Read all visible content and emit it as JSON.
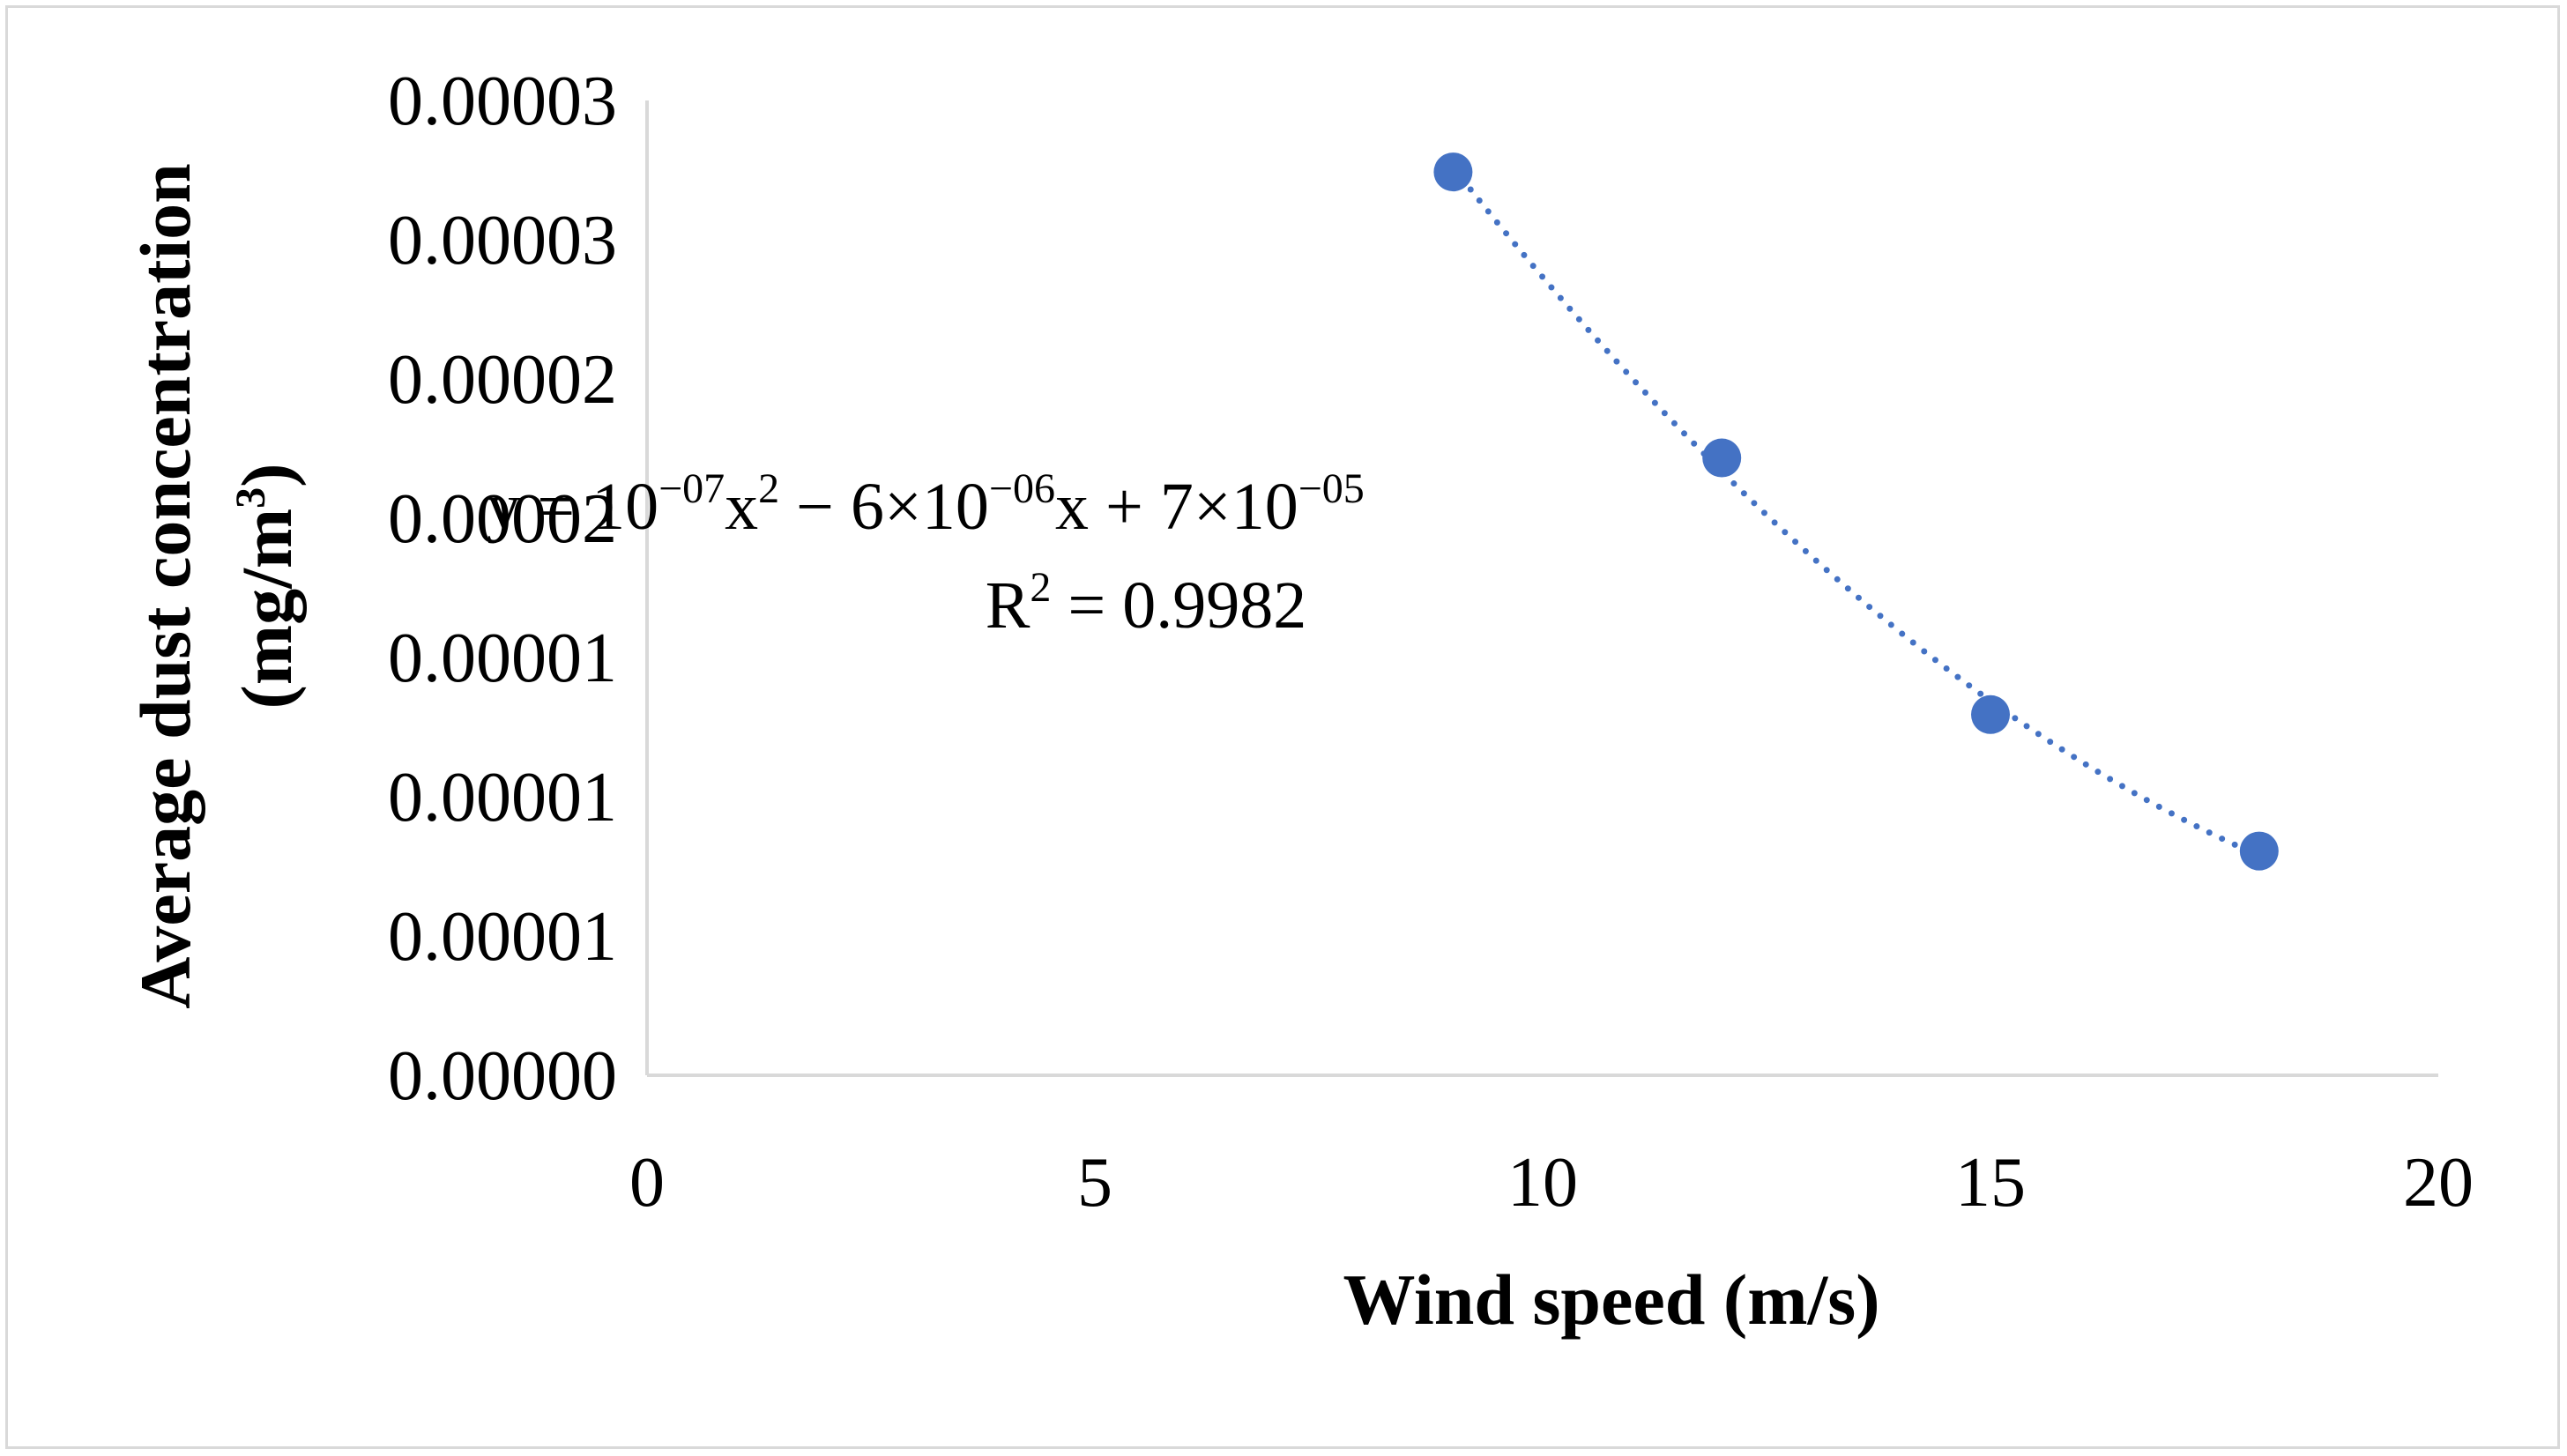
{
  "chart_data": {
    "type": "scatter",
    "title": "",
    "xlabel": "Wind speed (m/s)",
    "ylabel": "Average dust concentration",
    "ylabel_unit_prefix": "(mg/m",
    "ylabel_unit_exp": "3",
    "ylabel_unit_suffix": ")",
    "xlim": [
      0,
      20
    ],
    "ylim": [
      0,
      3e-05
    ],
    "x_ticks": [
      "0",
      "5",
      "10",
      "15",
      "20"
    ],
    "y_ticks": [
      "0.00000",
      "0.00001",
      "0.00001",
      "0.00001",
      "0.00002",
      "0.00002",
      "0.00003",
      "0.00003"
    ],
    "grid": false,
    "legend": "none",
    "series": [
      {
        "name": "Average dust concentration",
        "color": "#4472c4",
        "x": [
          9,
          12,
          15,
          18
        ],
        "y": [
          2.78e-05,
          1.9e-05,
          1.11e-05,
          6.9e-06
        ]
      }
    ],
    "trendline": {
      "type": "polynomial",
      "order": 2,
      "style": "dotted",
      "color": "#4472c4",
      "equation": {
        "y": "y = 10",
        "e1": "−07",
        "x1": "x",
        "p1": "2",
        "mid": " − 6×10",
        "e2": "−06",
        "x2": "x + 7×10",
        "e3": "−05"
      },
      "r2": {
        "label": "R",
        "exp": "2",
        "value": " = 0.9982"
      }
    },
    "colors": {
      "axis": "#d9d9d9",
      "border": "#d9d9d9",
      "marker": "#4472c4"
    }
  }
}
